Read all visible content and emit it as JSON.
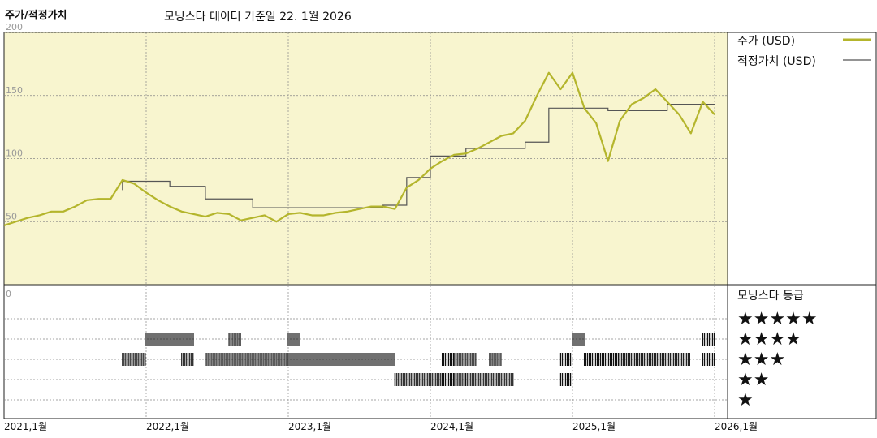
{
  "header": {
    "left_title": "주가/적정가치",
    "subtitle": "모닝스타 데이터 기준일 22. 1월 2026"
  },
  "legend": {
    "price_label": "주가 (USD)",
    "fair_label": "적정가치 (USD)",
    "rating_title": "모닝스타 등급"
  },
  "colors": {
    "panel_bg": "#f8f5cf",
    "price_line": "#b4b52c",
    "fair_line": "#555555",
    "grid": "#888888",
    "rating_bar": "#111111"
  },
  "chart_data": {
    "type": "line",
    "title": "",
    "xlabel": "",
    "ylabel": "",
    "ylim": [
      0,
      200
    ],
    "x_range": [
      "2021-01",
      "2026-01"
    ],
    "y_ticks": [
      0,
      50,
      100,
      150,
      200
    ],
    "x_tick_labels": [
      "2021,1월",
      "2022,1월",
      "2023,1월",
      "2024,1월",
      "2025,1월",
      "2026,1월"
    ],
    "grid": true,
    "legend_position": "right",
    "series": [
      {
        "name": "주가 (USD)",
        "points": [
          [
            "2021-01",
            47
          ],
          [
            "2021-02",
            50
          ],
          [
            "2021-03",
            53
          ],
          [
            "2021-04",
            55
          ],
          [
            "2021-05",
            58
          ],
          [
            "2021-06",
            58
          ],
          [
            "2021-07",
            62
          ],
          [
            "2021-08",
            67
          ],
          [
            "2021-09",
            68
          ],
          [
            "2021-10",
            68
          ],
          [
            "2021-11",
            83
          ],
          [
            "2021-12",
            80
          ],
          [
            "2022-01",
            73
          ],
          [
            "2022-02",
            67
          ],
          [
            "2022-03",
            62
          ],
          [
            "2022-04",
            58
          ],
          [
            "2022-05",
            56
          ],
          [
            "2022-06",
            54
          ],
          [
            "2022-07",
            57
          ],
          [
            "2022-08",
            56
          ],
          [
            "2022-09",
            51
          ],
          [
            "2022-10",
            53
          ],
          [
            "2022-11",
            55
          ],
          [
            "2022-12",
            50
          ],
          [
            "2023-01",
            56
          ],
          [
            "2023-02",
            57
          ],
          [
            "2023-03",
            55
          ],
          [
            "2023-04",
            55
          ],
          [
            "2023-05",
            57
          ],
          [
            "2023-06",
            58
          ],
          [
            "2023-07",
            60
          ],
          [
            "2023-08",
            62
          ],
          [
            "2023-09",
            62
          ],
          [
            "2023-10",
            60
          ],
          [
            "2023-11",
            77
          ],
          [
            "2023-12",
            83
          ],
          [
            "2024-01",
            92
          ],
          [
            "2024-02",
            98
          ],
          [
            "2024-03",
            103
          ],
          [
            "2024-04",
            104
          ],
          [
            "2024-05",
            108
          ],
          [
            "2024-06",
            113
          ],
          [
            "2024-07",
            118
          ],
          [
            "2024-08",
            120
          ],
          [
            "2024-09",
            130
          ],
          [
            "2024-10",
            150
          ],
          [
            "2024-11",
            168
          ],
          [
            "2024-12",
            155
          ],
          [
            "2025-01",
            168
          ],
          [
            "2025-02",
            140
          ],
          [
            "2025-03",
            128
          ],
          [
            "2025-04",
            98
          ],
          [
            "2025-05",
            130
          ],
          [
            "2025-06",
            143
          ],
          [
            "2025-07",
            148
          ],
          [
            "2025-08",
            155
          ],
          [
            "2025-09",
            145
          ],
          [
            "2025-10",
            135
          ],
          [
            "2025-11",
            120
          ],
          [
            "2025-12",
            145
          ],
          [
            "2026-01",
            135
          ]
        ]
      },
      {
        "name": "적정가치 (USD)",
        "points": [
          [
            "2021-11",
            75
          ],
          [
            "2021-11",
            82
          ],
          [
            "2022-03",
            82
          ],
          [
            "2022-03",
            78
          ],
          [
            "2022-06",
            78
          ],
          [
            "2022-06",
            68
          ],
          [
            "2022-10",
            68
          ],
          [
            "2022-10",
            61
          ],
          [
            "2023-09",
            61
          ],
          [
            "2023-09",
            63
          ],
          [
            "2023-11",
            63
          ],
          [
            "2023-11",
            85
          ],
          [
            "2024-01",
            85
          ],
          [
            "2024-01",
            102
          ],
          [
            "2024-04",
            102
          ],
          [
            "2024-04",
            108
          ],
          [
            "2024-09",
            108
          ],
          [
            "2024-09",
            113
          ],
          [
            "2024-11",
            113
          ],
          [
            "2024-11",
            140
          ],
          [
            "2025-04",
            140
          ],
          [
            "2025-04",
            138
          ],
          [
            "2025-09",
            138
          ],
          [
            "2025-09",
            143
          ],
          [
            "2026-01",
            143
          ]
        ]
      }
    ],
    "rating": {
      "levels": [
        "5",
        "4",
        "3",
        "2",
        "1"
      ],
      "segments": [
        {
          "stars": 4,
          "from": "2022-01",
          "to": "2022-05"
        },
        {
          "stars": 4,
          "from": "2022-08",
          "to": "2022-09"
        },
        {
          "stars": 4,
          "from": "2023-01",
          "to": "2023-02"
        },
        {
          "stars": 4,
          "from": "2025-01",
          "to": "2025-02"
        },
        {
          "stars": 4,
          "from": "2025-12",
          "to": "2026-01"
        },
        {
          "stars": 3,
          "from": "2021-11",
          "to": "2022-01"
        },
        {
          "stars": 3,
          "from": "2022-04",
          "to": "2022-05"
        },
        {
          "stars": 3,
          "from": "2022-06",
          "to": "2023-01"
        },
        {
          "stars": 3,
          "from": "2023-01",
          "to": "2023-10"
        },
        {
          "stars": 3,
          "from": "2024-02",
          "to": "2024-03"
        },
        {
          "stars": 3,
          "from": "2024-03",
          "to": "2024-05"
        },
        {
          "stars": 3,
          "from": "2024-06",
          "to": "2024-07"
        },
        {
          "stars": 3,
          "from": "2024-12",
          "to": "2025-01"
        },
        {
          "stars": 3,
          "from": "2025-02",
          "to": "2025-05"
        },
        {
          "stars": 3,
          "from": "2025-05",
          "to": "2025-11"
        },
        {
          "stars": 3,
          "from": "2025-12",
          "to": "2026-01"
        },
        {
          "stars": 2,
          "from": "2023-10",
          "to": "2024-02"
        },
        {
          "stars": 2,
          "from": "2024-02",
          "to": "2024-03"
        },
        {
          "stars": 2,
          "from": "2024-03",
          "to": "2024-04"
        },
        {
          "stars": 2,
          "from": "2024-04",
          "to": "2024-08"
        },
        {
          "stars": 2,
          "from": "2024-12",
          "to": "2025-01"
        }
      ],
      "star_labels": [
        "★★★★★",
        "★★★★",
        "★★★",
        "★★",
        "★"
      ]
    }
  }
}
